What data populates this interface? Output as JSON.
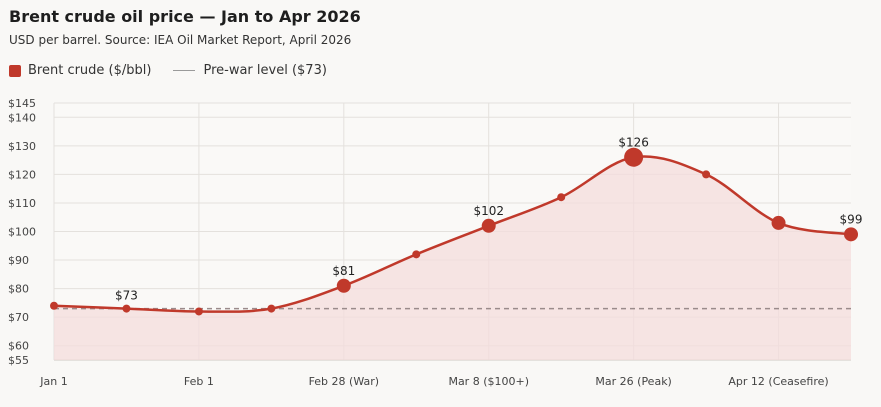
{
  "chart_data": {
    "type": "line",
    "title": "Brent crude oil price — Jan to Apr 2026",
    "subtitle": "USD per barrel. Source: IEA Oil Market Report, April 2026",
    "legend": [
      {
        "label": "Brent crude ($/bbl)",
        "kind": "series"
      },
      {
        "label": "Pre-war level ($73)",
        "kind": "reference-line"
      }
    ],
    "legend_placement": "top-left",
    "ylim": [
      55,
      145
    ],
    "yticks": [
      55,
      60,
      70,
      80,
      90,
      100,
      110,
      120,
      130,
      140,
      145
    ],
    "ytick_labels": [
      "$55",
      "$60",
      "$70",
      "$80",
      "$90",
      "$100",
      "$110",
      "$120",
      "$130",
      "$140",
      "$145"
    ],
    "x_categories": [
      "Jan 1",
      "Feb 1",
      "Feb 28 (War)",
      "Mar 8 ($100+)",
      "Mar 26 (Peak)",
      "Apr 12 (Ceasefire)"
    ],
    "series": [
      {
        "name": "Brent crude ($/bbl)",
        "color": "#c0392b",
        "values": [
          74,
          73,
          72,
          73,
          81,
          92,
          102,
          112,
          126,
          120,
          103,
          99
        ],
        "large_marker": [
          false,
          false,
          false,
          false,
          true,
          false,
          true,
          false,
          true,
          false,
          true,
          true
        ],
        "labels": [
          "",
          "$73",
          "",
          "",
          "$81",
          "",
          "$102",
          "",
          "$126",
          "",
          "",
          "$99"
        ]
      }
    ],
    "reference_line": {
      "value": 73,
      "color": "#9a8b8b"
    },
    "grid": true,
    "fill_color": "#f4dcdc"
  }
}
